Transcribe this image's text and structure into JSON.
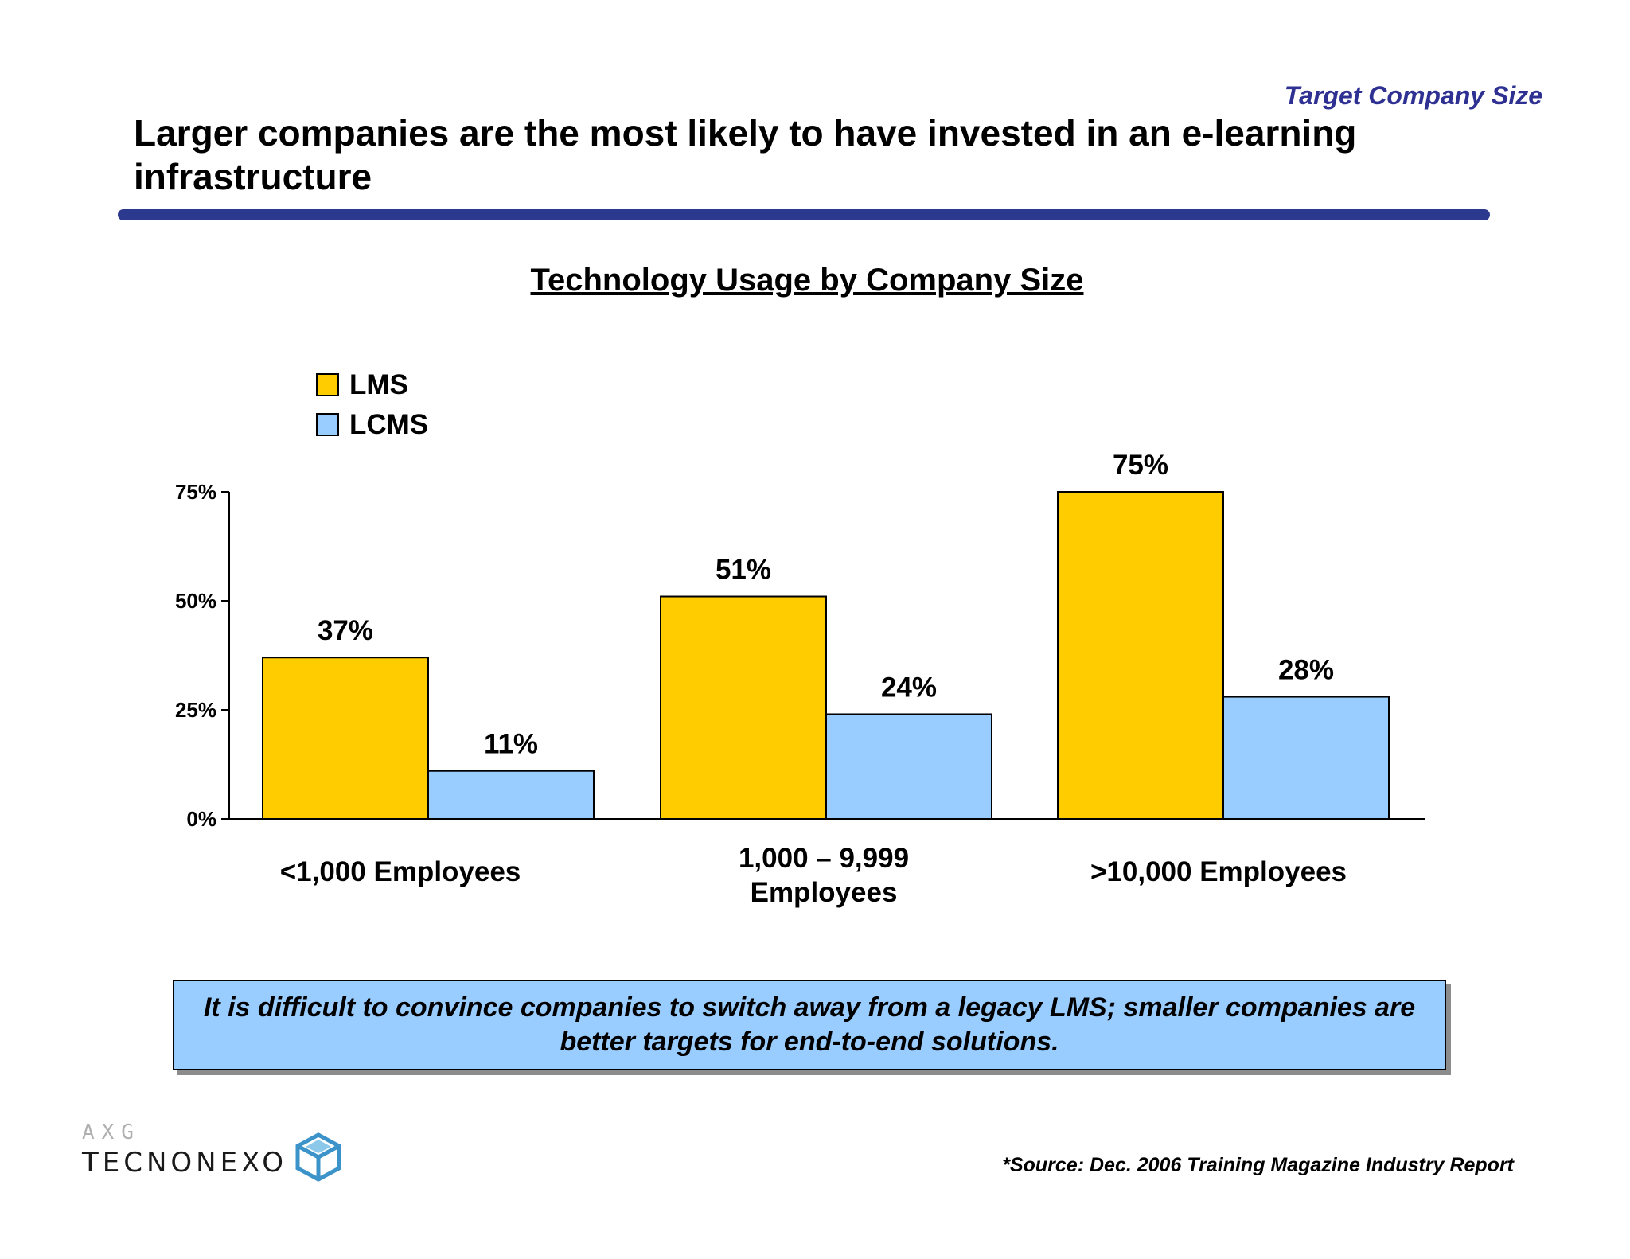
{
  "header": {
    "section_label": "Target Company Size",
    "headline": "Larger companies are the most likely to have invested in an e-learning infrastructure"
  },
  "colors": {
    "accent_rule": "#2b3a8f",
    "section_label": "#2e3192",
    "lms": "#ffcc00",
    "lcms": "#99ccff",
    "takeaway_bg": "#99ccff"
  },
  "chart_data": {
    "type": "bar",
    "title": "Technology Usage by Company Size",
    "categories": [
      "<1,000 Employees",
      "1,000 – 9,999 Employees",
      ">10,000 Employees"
    ],
    "series": [
      {
        "name": "LMS",
        "values": [
          37,
          51,
          75
        ],
        "labels": [
          "37%",
          "51%",
          "75%"
        ]
      },
      {
        "name": "LCMS",
        "values": [
          11,
          24,
          28
        ],
        "labels": [
          "11%",
          "24%",
          "28%"
        ]
      }
    ],
    "ylim": [
      0,
      75
    ],
    "yticks": [
      0,
      25,
      50,
      75
    ],
    "ytick_labels": [
      "0%",
      "25%",
      "50%",
      "75%"
    ],
    "xlabel": "",
    "ylabel": "",
    "legend_position": "top-left",
    "grid": false
  },
  "takeaway": {
    "text": "It is difficult to convince companies to switch away from a legacy LMS; smaller companies are better targets for end-to-end solutions."
  },
  "footer": {
    "logo_top": "AXG",
    "logo_name": "TECNONEXO",
    "source": "*Source: Dec. 2006 Training Magazine Industry Report"
  }
}
